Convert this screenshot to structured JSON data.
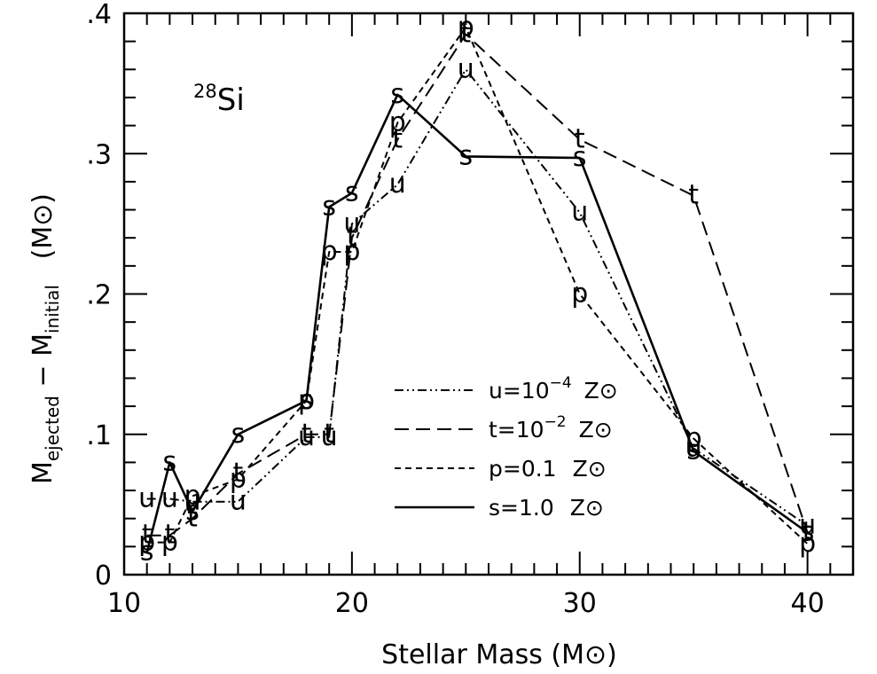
{
  "chart_data": {
    "type": "line",
    "annotation": {
      "mass_number": "28",
      "element": "Si"
    },
    "xlabel": "Stellar Mass (M⊙)",
    "ylabel": {
      "prefix": "M",
      "sub1": "ejected",
      "middle": " − M",
      "sub2": "initial",
      "suffix": "   (M⊙)"
    },
    "xlim": [
      10,
      42
    ],
    "ylim": [
      0,
      0.4
    ],
    "x_ticks": [
      10,
      20,
      30,
      40
    ],
    "x_tick_labels": [
      "10",
      "20",
      "30",
      "40"
    ],
    "y_ticks": [
      0,
      0.1,
      0.2,
      0.3,
      0.4
    ],
    "y_tick_labels": [
      "0",
      ".1",
      ".2",
      ".3",
      ".4"
    ],
    "legend_position": "center-right",
    "series": [
      {
        "marker": "u",
        "legend": {
          "prefix": "u=10",
          "exp": "−4",
          "suffix": "Z⊙"
        },
        "dash": "10,4,2,4,2,4",
        "x": [
          11,
          12,
          13,
          15,
          18,
          19,
          20,
          22,
          25,
          30,
          35,
          40
        ],
        "y": [
          0.054,
          0.054,
          0.052,
          0.052,
          0.098,
          0.098,
          0.25,
          0.278,
          0.36,
          0.258,
          0.09,
          0.035
        ]
      },
      {
        "marker": "t",
        "legend": {
          "prefix": "t=10",
          "exp": "−2",
          "suffix": "Z⊙"
        },
        "dash": "16,8",
        "x": [
          11,
          12,
          13,
          15,
          18,
          19,
          20,
          22,
          25,
          30,
          35,
          40
        ],
        "y": [
          0.028,
          0.028,
          0.04,
          0.072,
          0.1,
          0.1,
          0.24,
          0.31,
          0.385,
          0.31,
          0.27,
          0.03
        ]
      },
      {
        "marker": "p",
        "legend": {
          "prefix": "p=0.1",
          "exp": "",
          "suffix": "Z⊙"
        },
        "dash": "7,5",
        "x": [
          11,
          12,
          13,
          15,
          18,
          19,
          20,
          22,
          25,
          30,
          35,
          40
        ],
        "y": [
          0.023,
          0.023,
          0.056,
          0.068,
          0.124,
          0.23,
          0.23,
          0.322,
          0.39,
          0.2,
          0.097,
          0.022
        ]
      },
      {
        "marker": "s",
        "legend": {
          "prefix": "s=1.0",
          "exp": "",
          "suffix": "Z⊙"
        },
        "dash": "",
        "x": [
          11,
          12,
          13,
          15,
          18,
          19,
          20,
          22,
          25,
          30,
          35,
          40
        ],
        "y": [
          0.016,
          0.08,
          0.045,
          0.1,
          0.124,
          0.262,
          0.272,
          0.342,
          0.298,
          0.297,
          0.088,
          0.03
        ]
      }
    ]
  }
}
